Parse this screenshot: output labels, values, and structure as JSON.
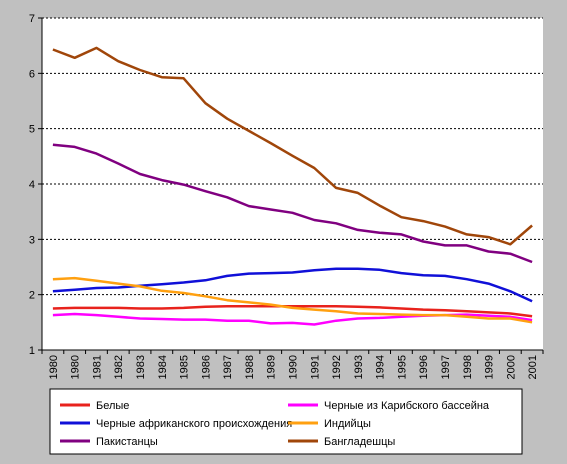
{
  "chart_data": {
    "type": "line",
    "title": "",
    "xlabel": "",
    "ylabel": "",
    "x": [
      "1980",
      "1980",
      "1981",
      "1982",
      "1983",
      "1984",
      "1985",
      "1986",
      "1987",
      "1988",
      "1989",
      "1990",
      "1991",
      "1992",
      "1993",
      "1994",
      "1995",
      "1996",
      "1997",
      "1998",
      "1999",
      "2000",
      "2001"
    ],
    "ylim": [
      1,
      7
    ],
    "yticks": [
      "1",
      "2",
      "3",
      "4",
      "5",
      "6",
      "7"
    ],
    "grid": "horizontal dashed",
    "legend_position": "bottom",
    "background_color": "#ffffff",
    "series": [
      {
        "name": "Белые",
        "color": "#e8221c",
        "values": [
          1.75,
          1.76,
          1.76,
          1.76,
          1.75,
          1.75,
          1.76,
          1.78,
          1.79,
          1.79,
          1.79,
          1.79,
          1.79,
          1.79,
          1.78,
          1.77,
          1.75,
          1.73,
          1.72,
          1.7,
          1.68,
          1.66,
          1.61
        ]
      },
      {
        "name": "Черные из Карибского бассейна",
        "color": "#ff00ff",
        "values": [
          1.63,
          1.65,
          1.63,
          1.6,
          1.57,
          1.56,
          1.55,
          1.55,
          1.53,
          1.53,
          1.48,
          1.49,
          1.46,
          1.53,
          1.57,
          1.58,
          1.6,
          1.62,
          1.63,
          1.64,
          1.62,
          1.6,
          1.54
        ]
      },
      {
        "name": "Черные африканского происхождения",
        "color": "#1010d8",
        "values": [
          2.06,
          2.09,
          2.12,
          2.13,
          2.16,
          2.19,
          2.22,
          2.26,
          2.34,
          2.38,
          2.39,
          2.4,
          2.44,
          2.47,
          2.47,
          2.45,
          2.39,
          2.35,
          2.34,
          2.28,
          2.2,
          2.06,
          1.88
        ]
      },
      {
        "name": "Индийцы",
        "color": "#ffa010",
        "values": [
          2.28,
          2.3,
          2.25,
          2.2,
          2.15,
          2.07,
          2.03,
          1.97,
          1.9,
          1.86,
          1.82,
          1.76,
          1.73,
          1.7,
          1.66,
          1.65,
          1.64,
          1.63,
          1.63,
          1.6,
          1.57,
          1.57,
          1.5
        ]
      },
      {
        "name": "Пакистанцы",
        "color": "#800080",
        "values": [
          4.71,
          4.67,
          4.55,
          4.37,
          4.18,
          4.07,
          3.99,
          3.87,
          3.76,
          3.6,
          3.54,
          3.48,
          3.35,
          3.29,
          3.17,
          3.12,
          3.09,
          2.96,
          2.89,
          2.89,
          2.78,
          2.74,
          2.59
        ]
      },
      {
        "name": "Бангладешцы",
        "color": "#a0460a",
        "values": [
          6.43,
          6.28,
          6.46,
          6.22,
          6.06,
          5.93,
          5.91,
          5.46,
          5.18,
          4.96,
          4.74,
          4.51,
          4.29,
          3.93,
          3.84,
          3.61,
          3.4,
          3.33,
          3.23,
          3.09,
          3.04,
          2.91,
          3.25
        ]
      }
    ],
    "legend_layout": [
      [
        "Белые",
        "Черные из Карибского бассейна"
      ],
      [
        "Черные африканского происхождения",
        "Индийцы"
      ],
      [
        "Пакистанцы",
        "Бангладешцы"
      ]
    ]
  }
}
